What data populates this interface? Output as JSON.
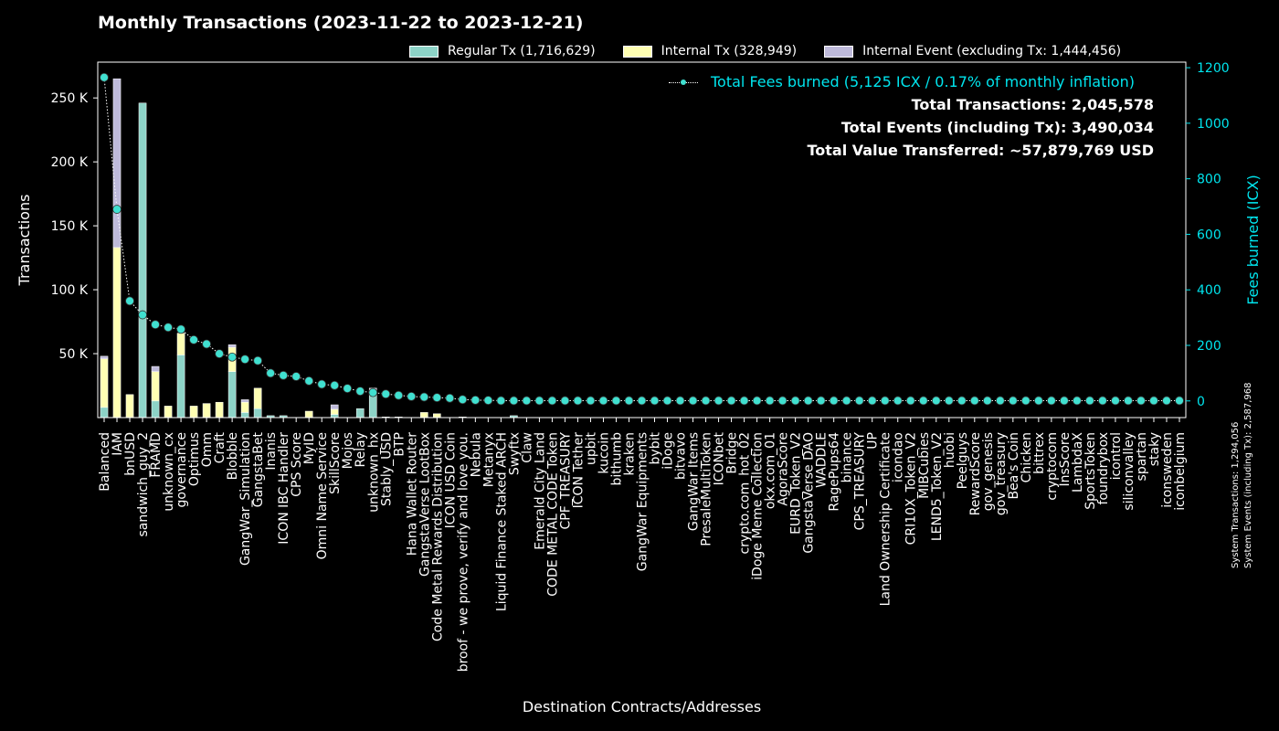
{
  "chart_data": {
    "type": "bar",
    "title": "Monthly Transactions (2023-11-22 to 2023-12-21)",
    "xlabel": "Destination Contracts/Addresses",
    "ylabel": "Transactions",
    "y2label": "Fees burned (ICX)",
    "ylim": [
      0,
      278000
    ],
    "y2lim": [
      -60,
      1220
    ],
    "yticks": [
      50000,
      100000,
      150000,
      200000,
      250000
    ],
    "ytick_labels": [
      "50 K",
      "100 K",
      "150 K",
      "200 K",
      "250 K"
    ],
    "y2ticks": [
      0,
      200,
      400,
      600,
      800,
      1000,
      1200
    ],
    "legend_position": "top-right",
    "categories": [
      "Balanced",
      "IAM",
      "bnUSD",
      "sandwich_guy_2",
      "FRAMD",
      "unknown_cx",
      "governance",
      "Optimus",
      "Omm",
      "Craft",
      "Blobble",
      "GangWar_Simulation",
      "GangstaBet",
      "Inanis",
      "ICON IBC Handler",
      "CPS Score",
      "MyID",
      "Omni Name Service",
      "SkillScore",
      "Mojos",
      "Relay",
      "unknown_hx",
      "Stably_USD",
      "BTP",
      "Hana Wallet Router",
      "GangstaVerse LootBox",
      "Code Metal Rewards Distribution",
      "ICON USD Coin",
      "broof - we prove, verify and love you.",
      "Nebula",
      "Metanyx",
      "Liquid Finance Staked ARCH",
      "Swyftx",
      "Claw",
      "Emerald City Land",
      "CODE METAL CODE Token",
      "CPF_TREASURY",
      "ICON Tether",
      "upbit",
      "kucoin",
      "bithumb",
      "kraken",
      "GangWar Equipments",
      "bybit",
      "iDoge",
      "bitvavo",
      "GangWar Items",
      "PresaleMultiToken",
      "ICONbet",
      "Bridge",
      "crypto.com_hot_02",
      "iDoge Meme Collection",
      "okx.com_01",
      "AgoraScore",
      "EURD_Token_V2",
      "GangstaVerse DAO",
      "WADDLE",
      "RagePups64",
      "binance",
      "CPS_TREASURY",
      "UP",
      "Land Ownership Certificate",
      "icondao",
      "CRI10X_Token_V2",
      "MIBCubies",
      "LEND5_Token_V2",
      "huobi",
      "Peelguys",
      "RewardScore",
      "gov_genesis",
      "gov_treasury",
      "Bea's Coin",
      "Chicken",
      "bittrex",
      "cryptocom",
      "InsScore",
      "LambdaX",
      "SportsToken",
      "foundrybox",
      "icontrol",
      "siliconvalley",
      "spartan",
      "staky",
      "iconsweden",
      "iconbelgium"
    ],
    "series": [
      {
        "name": "Regular Tx (1,716,629)",
        "color": "#8dd3c7",
        "values": [
          8000,
          0,
          0,
          246000,
          13000,
          0,
          49000,
          0,
          0,
          0,
          36000,
          4000,
          7000,
          1500,
          1500,
          0,
          0,
          0,
          2500,
          0,
          7000,
          21000,
          500,
          500,
          0,
          0,
          0,
          0,
          500,
          0,
          0,
          0,
          1500,
          0,
          0,
          0,
          0,
          0,
          0,
          0,
          0,
          0,
          0,
          0,
          0,
          0,
          0,
          0,
          0,
          0,
          0,
          0,
          0,
          0,
          0,
          0,
          0,
          0,
          0,
          0,
          0,
          0,
          0,
          0,
          0,
          0,
          0,
          0,
          0,
          0,
          0,
          0,
          0,
          0,
          0,
          0,
          0,
          0,
          0,
          0,
          0,
          0,
          0,
          0,
          0
        ]
      },
      {
        "name": "Internal Tx (328,949)",
        "color": "#ffffb3",
        "values": [
          38000,
          133000,
          18000,
          0,
          23000,
          9000,
          17000,
          9000,
          11000,
          12000,
          19000,
          8000,
          16000,
          0,
          0,
          0,
          5000,
          0,
          4000,
          0,
          0,
          0,
          0,
          0,
          0,
          4000,
          3000,
          0,
          0,
          0,
          0,
          0,
          0,
          0,
          0,
          0,
          0,
          0,
          0,
          0,
          0,
          0,
          0,
          0,
          0,
          0,
          0,
          0,
          0,
          0,
          0,
          0,
          0,
          0,
          0,
          0,
          0,
          0,
          0,
          0,
          0,
          0,
          0,
          0,
          0,
          0,
          0,
          0,
          0,
          0,
          0,
          0,
          0,
          0,
          0,
          0,
          0,
          0,
          0,
          0,
          0,
          0,
          0,
          0,
          0
        ]
      },
      {
        "name": "Internal Event (excluding Tx: 1,444,456)",
        "color": "#bebada",
        "values": [
          2000,
          132000,
          0,
          0,
          4000,
          0,
          0,
          0,
          0,
          0,
          2000,
          2000,
          0,
          0,
          0,
          0,
          0,
          0,
          3500,
          0,
          0,
          2000,
          0,
          0,
          0,
          0,
          0,
          0,
          0,
          0,
          0,
          0,
          0,
          0,
          0,
          0,
          0,
          0,
          0,
          0,
          0,
          0,
          0,
          0,
          0,
          0,
          0,
          0,
          0,
          0,
          0,
          0,
          0,
          0,
          0,
          0,
          0,
          0,
          0,
          0,
          0,
          0,
          0,
          0,
          0,
          0,
          0,
          0,
          0,
          0,
          0,
          0,
          0,
          0,
          0,
          0,
          0,
          0,
          0,
          0,
          0,
          0,
          0,
          0,
          0
        ]
      }
    ],
    "fees": {
      "name": "Total Fees burned (5,125 ICX / 0.17% of monthly inflation)",
      "color": "#40e0d0",
      "values": [
        1165,
        690,
        360,
        310,
        275,
        265,
        258,
        220,
        205,
        170,
        158,
        150,
        145,
        100,
        92,
        88,
        72,
        60,
        56,
        45,
        35,
        30,
        25,
        20,
        16,
        14,
        12,
        10,
        5,
        3,
        2,
        1,
        1,
        1,
        1,
        1,
        1,
        1,
        1,
        1,
        1,
        1,
        1,
        1,
        1,
        1,
        1,
        1,
        1,
        1,
        1,
        1,
        1,
        1,
        1,
        1,
        1,
        1,
        1,
        1,
        1,
        1,
        1,
        1,
        1,
        1,
        1,
        1,
        1,
        1,
        1,
        1,
        1,
        1,
        1,
        1,
        1,
        1,
        1,
        1,
        1,
        1,
        1,
        1,
        1
      ]
    }
  },
  "summary": {
    "total_transactions": "Total Transactions: 2,045,578",
    "total_events": "Total Events (including Tx): 3,490,034",
    "total_value": "Total Value Transferred: ~57,879,769 USD"
  },
  "side_note": {
    "system_transactions": "System Transactions: 1,294,056",
    "system_events": "System Events (including Tx): 2,587,968"
  }
}
